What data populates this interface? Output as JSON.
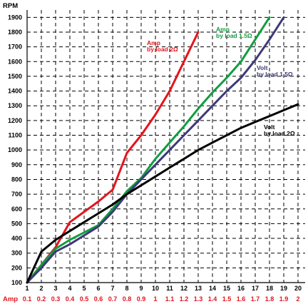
{
  "chart_data": {
    "type": "line",
    "ylabel": "RPM",
    "xlabel": "",
    "x_secondary_label": "Amp",
    "x": [
      1,
      2,
      3,
      4,
      5,
      6,
      7,
      8,
      9,
      10,
      11,
      12,
      13,
      14,
      15,
      16,
      17,
      18,
      19,
      20
    ],
    "x_tick_labels": [
      "1",
      "2",
      "3",
      "4",
      "5",
      "6",
      "7",
      "8",
      "9",
      "10",
      "11",
      "12",
      "13",
      "14",
      "15",
      "16",
      "17",
      "18",
      "19",
      "20"
    ],
    "x_secondary_tick_labels": [
      "0.1",
      "0.2",
      "0.3",
      "0.4",
      "0.5",
      "0.6",
      "0.7",
      "0.8",
      "0.9",
      "1",
      "1.1",
      "1.2",
      "1.3",
      "1.4",
      "1.5",
      "1.6",
      "1.7",
      "1.8",
      "1.9",
      "2"
    ],
    "xlim": [
      1,
      20.4
    ],
    "ylim": [
      100,
      1950
    ],
    "y_ticks": [
      100,
      200,
      300,
      400,
      500,
      600,
      700,
      800,
      900,
      1000,
      1100,
      1200,
      1300,
      1400,
      1500,
      1600,
      1700,
      1800,
      1900
    ],
    "grid": true,
    "series": [
      {
        "label_lines": [
          "Amp",
          "by load 2Ω"
        ],
        "color": "#e4141b",
        "points": [
          [
            1,
            100
          ],
          [
            2,
            220
          ],
          [
            3,
            340
          ],
          [
            4,
            510
          ],
          [
            5,
            580
          ],
          [
            6,
            650
          ],
          [
            7,
            730
          ],
          [
            8,
            980
          ],
          [
            9,
            1100
          ],
          [
            10,
            1240
          ],
          [
            11,
            1400
          ],
          [
            12,
            1600
          ],
          [
            13,
            1800
          ]
        ]
      },
      {
        "label_lines": [
          "Amp",
          "by load 1.5Ω"
        ],
        "color": "#0f9e3e",
        "points": [
          [
            1,
            100
          ],
          [
            2,
            220
          ],
          [
            3,
            330
          ],
          [
            4,
            390
          ],
          [
            5,
            440
          ],
          [
            6,
            490
          ],
          [
            7,
            600
          ],
          [
            8,
            720
          ],
          [
            9,
            810
          ],
          [
            10,
            940
          ],
          [
            11,
            1050
          ],
          [
            12,
            1160
          ],
          [
            13,
            1280
          ],
          [
            14,
            1390
          ],
          [
            15,
            1490
          ],
          [
            16,
            1600
          ],
          [
            17,
            1750
          ],
          [
            18,
            1900
          ]
        ]
      },
      {
        "label_lines": [
          "Volt",
          "by load 1.5Ω"
        ],
        "color": "#3d3a78",
        "points": [
          [
            1,
            100
          ],
          [
            2,
            200
          ],
          [
            3,
            310
          ],
          [
            4,
            360
          ],
          [
            5,
            420
          ],
          [
            6,
            480
          ],
          [
            7,
            580
          ],
          [
            8,
            700
          ],
          [
            9,
            800
          ],
          [
            10,
            900
          ],
          [
            11,
            1000
          ],
          [
            12,
            1100
          ],
          [
            13,
            1200
          ],
          [
            14,
            1300
          ],
          [
            15,
            1400
          ],
          [
            16,
            1490
          ],
          [
            17,
            1610
          ],
          [
            18,
            1750
          ],
          [
            19,
            1900
          ]
        ]
      },
      {
        "label_lines": [
          "Volt",
          "by load 2Ω"
        ],
        "color": "#000000",
        "points": [
          [
            1,
            100
          ],
          [
            2,
            310
          ],
          [
            3,
            390
          ],
          [
            4,
            450
          ],
          [
            5,
            510
          ],
          [
            6,
            570
          ],
          [
            7,
            630
          ],
          [
            8,
            700
          ],
          [
            9,
            760
          ],
          [
            10,
            820
          ],
          [
            11,
            880
          ],
          [
            12,
            940
          ],
          [
            13,
            1000
          ],
          [
            14,
            1050
          ],
          [
            15,
            1100
          ],
          [
            16,
            1150
          ],
          [
            17,
            1190
          ],
          [
            18,
            1230
          ],
          [
            19,
            1270
          ],
          [
            20,
            1310
          ]
        ]
      }
    ]
  }
}
